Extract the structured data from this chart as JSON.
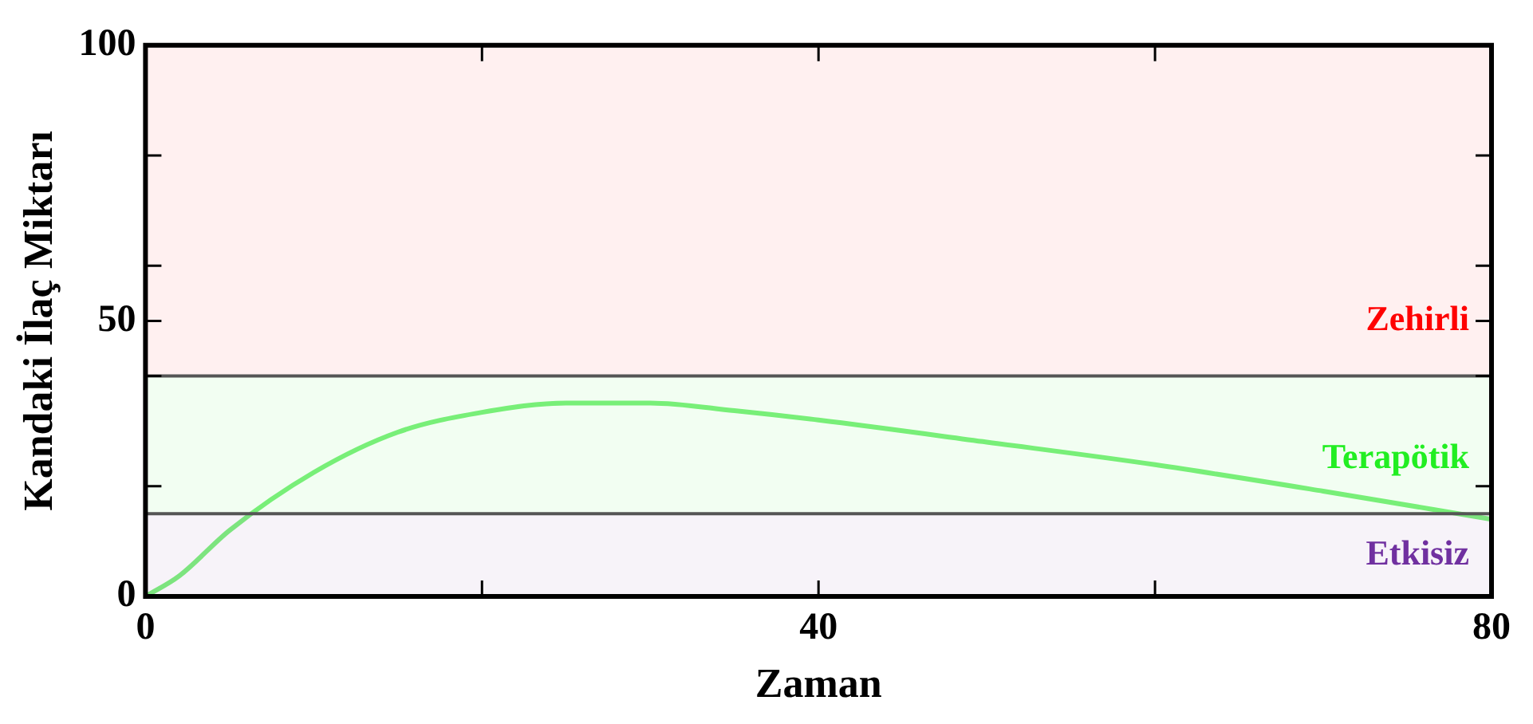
{
  "chart_data": {
    "type": "line",
    "xlabel": "Zaman",
    "ylabel": "Kandaki İlaç Miktarı",
    "xlim": [
      0,
      80
    ],
    "xticks": [
      0,
      {
        "value": 20,
        "label": null
      },
      40,
      {
        "value": 60,
        "label": null
      },
      80
    ],
    "ylim": [
      0,
      100
    ],
    "yticks": [
      0,
      {
        "value": 20,
        "label": null
      },
      {
        "value": 40,
        "label": null
      },
      50,
      {
        "value": 60,
        "label": null
      },
      {
        "value": 80,
        "label": null
      },
      100
    ],
    "series": [
      {
        "color": "#7ef07e",
        "x": [
          0,
          2,
          5,
          10,
          15,
          20,
          25,
          30,
          35,
          40,
          50,
          60,
          70,
          80
        ],
        "values": [
          0,
          3.7,
          12,
          22.5,
          29.8,
          33.4,
          35.1,
          35.1,
          33.7,
          32,
          28,
          23.9,
          19.1,
          14
        ]
      }
    ],
    "ref_lines": [
      {
        "axis": "y",
        "value": 40,
        "color": "#555555"
      },
      {
        "axis": "y",
        "value": 15,
        "color": "#555555"
      }
    ],
    "bands": [
      {
        "axis": "y",
        "from": 40,
        "to": 100,
        "label": "Zehirli",
        "color": "#ff0000"
      },
      {
        "axis": "y",
        "from": 15,
        "to": 40,
        "label": "Terapötik",
        "color": "#22ee22"
      },
      {
        "axis": "y",
        "from": 0,
        "to": 15,
        "label": "Etkisiz",
        "color": "#7030a0"
      }
    ],
    "marker": "none",
    "line_style": "solid",
    "legend": false,
    "grid": false
  }
}
